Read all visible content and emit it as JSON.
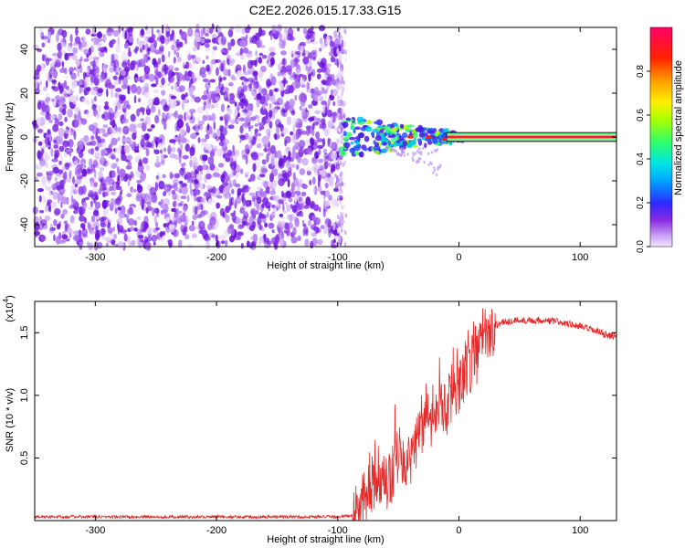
{
  "title": "C2E2.2026.015.17.33.G15",
  "colors": {
    "snr_line": "#e52a2a",
    "axis": "#000000",
    "noise": "#7a1fe0",
    "noise_light": "#c9a6f5",
    "plot_bg": "#ffffff"
  },
  "chart_data": [
    {
      "type": "heatmap",
      "id": "spectrogram",
      "xlabel": "Height of straight line (km)",
      "ylabel": "Frequency (Hz)",
      "xlim": [
        -350,
        130
      ],
      "ylim": [
        -50,
        50
      ],
      "xticks": [
        -300,
        -200,
        -100,
        0,
        100
      ],
      "xtick_labels": [
        "-300",
        "-200",
        "-100",
        "0",
        "100"
      ],
      "yticks": [
        -40,
        -20,
        0,
        20,
        40
      ],
      "ytick_labels": [
        "-40",
        "-20",
        "0",
        "20",
        "40"
      ],
      "noise_region_x": [
        -350,
        -96
      ],
      "signal_band": {
        "x_start": -97,
        "x_end": 130,
        "center_hz": 0,
        "half_width_hz": 2
      },
      "colorbar": {
        "label": "Normalized spectral amplitude",
        "range": [
          0,
          1
        ],
        "ticks": [
          0.0,
          0.2,
          0.4,
          0.6,
          0.8
        ],
        "tick_labels": [
          "0.0",
          "0.2",
          "0.4",
          "0.6",
          "0.8"
        ]
      }
    },
    {
      "type": "line",
      "id": "snr",
      "xlabel": "Height of straight line (km)",
      "ylabel": "SNR (10 * v/v)",
      "scale_label": "(x10",
      "scale_exp": "4",
      "scale_close": ")",
      "xlim": [
        -350,
        130
      ],
      "ylim": [
        0,
        1.75
      ],
      "xticks": [
        -300,
        -200,
        -100,
        0,
        100
      ],
      "xtick_labels": [
        "-300",
        "-200",
        "-100",
        "0",
        "100"
      ],
      "yticks": [
        0.5,
        1.0,
        1.5
      ],
      "ytick_labels": [
        "0.5",
        "1.0",
        "1.5"
      ],
      "series": [
        {
          "name": "SNR",
          "x": [
            -350,
            -300,
            -250,
            -200,
            -150,
            -100,
            -88,
            -80,
            -75,
            -70,
            -65,
            -60,
            -55,
            -50,
            -45,
            -40,
            -35,
            -30,
            -25,
            -20,
            -15,
            -10,
            -5,
            0,
            5,
            10,
            15,
            20,
            25,
            30,
            35,
            40,
            50,
            60,
            70,
            80,
            90,
            100,
            110,
            120,
            130
          ],
          "values": [
            0.03,
            0.03,
            0.03,
            0.03,
            0.03,
            0.03,
            0.04,
            0.1,
            0.18,
            0.26,
            0.3,
            0.33,
            0.38,
            0.42,
            0.45,
            0.52,
            0.68,
            0.75,
            0.82,
            0.85,
            0.9,
            0.95,
            1.0,
            1.06,
            1.15,
            1.25,
            1.38,
            1.47,
            1.53,
            1.56,
            1.58,
            1.59,
            1.6,
            1.6,
            1.6,
            1.59,
            1.57,
            1.55,
            1.52,
            1.49,
            1.47
          ]
        }
      ]
    }
  ]
}
